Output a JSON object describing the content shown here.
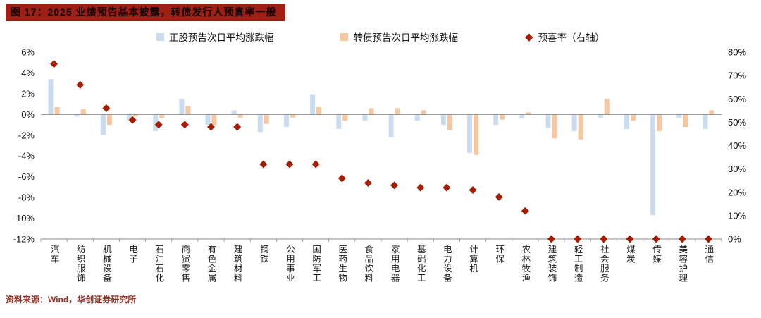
{
  "title": "图 17：2025 业绩预告基本披露，转债发行人预喜率一般",
  "source": "资料来源：Wind，华创证券研究所",
  "colors": {
    "title_bg": "#9e2015",
    "axis_line": "#8c8c8c",
    "stock_bar": "#c9dcf0",
    "cb_bar": "#f5c8a2",
    "rate_diamond": "#a61c00"
  },
  "chart_data": {
    "type": "bar",
    "title": "图 17：2025 业绩预告基本披露，转债发行人预喜率一般",
    "grid": false,
    "legend_position": "top",
    "categories": [
      "汽车",
      "纺织服饰",
      "机械设备",
      "电子",
      "石油石化",
      "商贸零售",
      "有色金属",
      "建筑材料",
      "钢铁",
      "公用事业",
      "国防军工",
      "医药生物",
      "食品饮料",
      "家用电器",
      "基础化工",
      "电力设备",
      "计算机",
      "环保",
      "农林牧渔",
      "建筑装饰",
      "轻工制造",
      "社会服务",
      "煤炭",
      "传媒",
      "美容护理",
      "通信"
    ],
    "series": [
      {
        "name": "正股预告次日平均涨跌幅",
        "type": "bar",
        "axis": "left",
        "color": "#c9dcf0",
        "values": [
          3.4,
          -0.2,
          -2.0,
          -0.5,
          -1.6,
          1.5,
          -1.0,
          0.4,
          -1.7,
          -1.2,
          1.9,
          -1.4,
          -0.6,
          -2.2,
          -0.6,
          -1.0,
          -3.7,
          -1.0,
          -0.4,
          -1.3,
          -1.6,
          -0.3,
          -1.4,
          -9.7,
          -0.3,
          -1.4
        ]
      },
      {
        "name": "转债预告次日平均涨跌幅",
        "type": "bar",
        "axis": "left",
        "color": "#f5c8a2",
        "values": [
          0.7,
          0.5,
          -1.0,
          -0.2,
          -0.4,
          0.8,
          -1.0,
          -0.3,
          -0.9,
          -0.3,
          0.7,
          -0.6,
          0.6,
          0.6,
          0.4,
          -1.5,
          -3.9,
          -0.5,
          0.2,
          -2.3,
          -2.4,
          1.5,
          -0.6,
          -1.6,
          -1.2,
          0.4
        ]
      },
      {
        "name": "预喜率（右轴）",
        "type": "diamond",
        "axis": "right",
        "color": "#a61c00",
        "values": [
          75,
          66,
          56,
          51,
          49,
          49,
          48,
          48,
          32,
          32,
          32,
          26,
          24,
          23,
          22,
          22,
          21,
          18,
          12,
          0,
          0,
          0,
          0,
          0,
          0,
          0
        ]
      }
    ],
    "left_axis": {
      "min": -12,
      "max": 6,
      "tick_values": [
        6,
        4,
        2,
        0,
        -2,
        -4,
        -6,
        -8,
        -10,
        -12
      ],
      "ticks": [
        "6%",
        "4%",
        "2%",
        "0%",
        "-2%",
        "-4%",
        "-6%",
        "-8%",
        "-10%",
        "-12%"
      ]
    },
    "right_axis": {
      "min": 0,
      "max": 80,
      "tick_values": [
        80,
        70,
        60,
        50,
        40,
        30,
        20,
        10,
        0
      ],
      "ticks": [
        "80%",
        "70%",
        "60%",
        "50%",
        "40%",
        "30%",
        "20%",
        "10%",
        "0%"
      ]
    }
  }
}
